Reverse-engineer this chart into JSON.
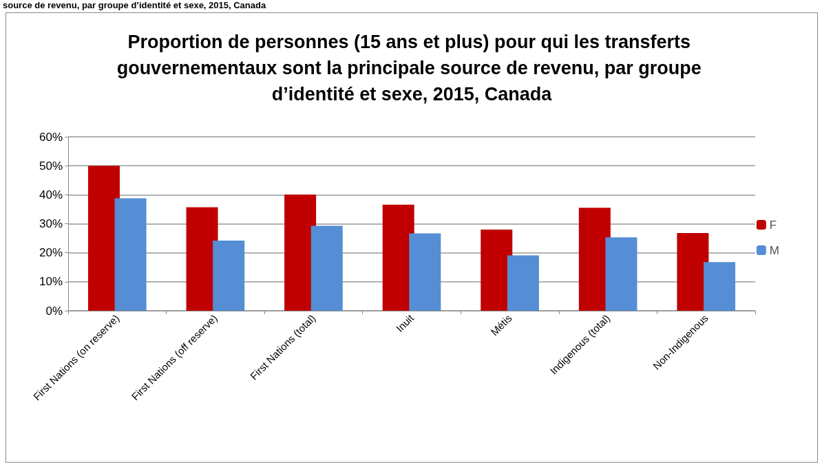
{
  "chart_data": {
    "type": "bar",
    "title": "Proportion de personnes (15 ans et plus) pour qui les transferts gouvernementaux sont la principale source de revenu, par groupe d’identité et sexe, 2015, Canada",
    "annotations": [
      "source de revenu, par groupe d’identité et sexe, 2015, Canada"
    ],
    "categories": [
      "First Nations (on reserve)",
      "First Nations (off reserve)",
      "First Nations (total)",
      "Inuit",
      "Métis",
      "Indigenous (total)",
      "Non-Indigenous"
    ],
    "series": [
      {
        "name": "F",
        "color": "#c00000",
        "values": [
          50.0,
          35.7,
          40.1,
          36.6,
          28.0,
          35.5,
          26.8
        ]
      },
      {
        "name": "M",
        "color": "#558ed5",
        "values": [
          38.8,
          24.2,
          29.3,
          26.7,
          19.1,
          25.3,
          16.8
        ]
      }
    ],
    "ylim": [
      0,
      60
    ],
    "yticks": [
      {
        "value": 0,
        "label": "0%"
      },
      {
        "value": 10,
        "label": "10%"
      },
      {
        "value": 20,
        "label": "20%"
      },
      {
        "value": 30,
        "label": "30%"
      },
      {
        "value": 40,
        "label": "40%"
      },
      {
        "value": 50,
        "label": "50%"
      },
      {
        "value": 60,
        "label": "60%"
      }
    ],
    "grid": "y",
    "legend": "right"
  }
}
